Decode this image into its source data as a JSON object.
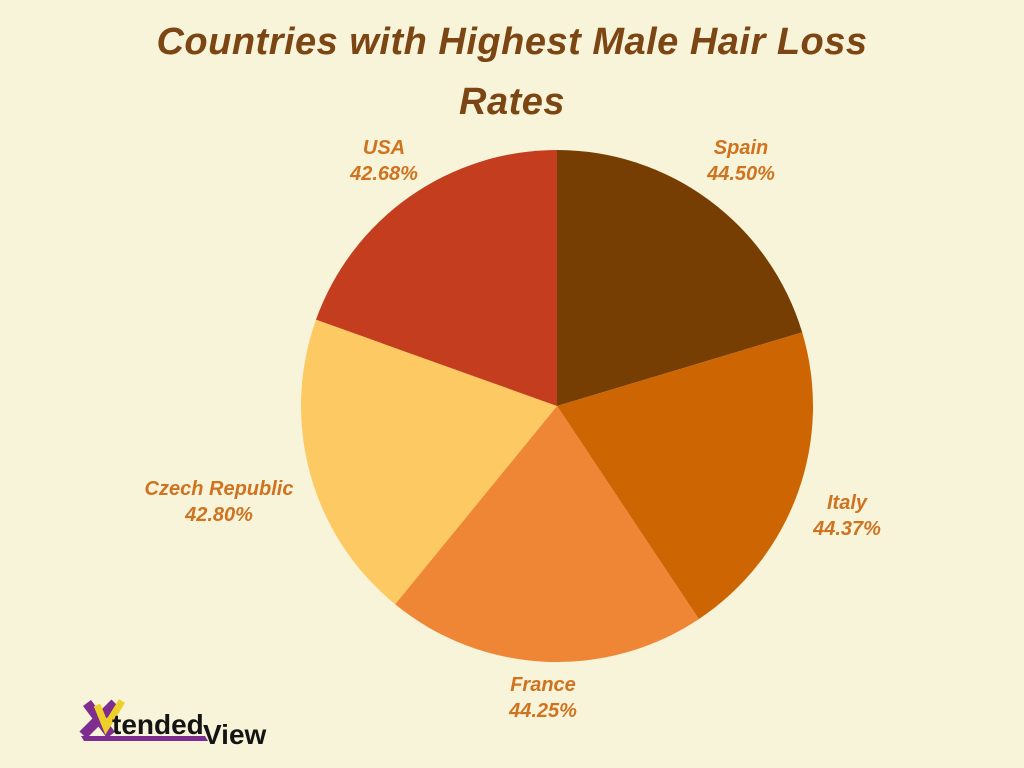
{
  "title_lines": [
    "Countries with Highest Male Hair Loss",
    "Rates"
  ],
  "chart_data": {
    "type": "pie",
    "title": "Countries with Highest Male Hair Loss Rates",
    "categories": [
      "Spain",
      "Italy",
      "France",
      "Czech Republic",
      "USA"
    ],
    "values": [
      44.5,
      44.37,
      44.25,
      42.8,
      42.68
    ],
    "value_labels": [
      "44.50%",
      "44.37%",
      "44.25%",
      "42.80%",
      "42.68%"
    ],
    "colors": [
      "#773E03",
      "#CC6502",
      "#EF8636",
      "#FDC963",
      "#C33D1E"
    ],
    "start_angle_deg": 0,
    "clockwise": true,
    "legend_position": "outside-labels",
    "grid": false
  },
  "labels": [
    {
      "name": "Spain",
      "value": "44.50%"
    },
    {
      "name": "Italy",
      "value": "44.37%"
    },
    {
      "name": "France",
      "value": "44.25%"
    },
    {
      "name": "Czech Republic",
      "value": "42.80%"
    },
    {
      "name": "USA",
      "value": "42.68%"
    }
  ],
  "logo": {
    "part1": "tended",
    "part2": "View"
  },
  "colors": {
    "background": "#F8F4D9",
    "title_text": "#7B4514",
    "label_text": "#CF7320",
    "logo_purple": "#7E2D8F",
    "logo_yellow": "#EFD028",
    "logo_text": "#141414"
  }
}
